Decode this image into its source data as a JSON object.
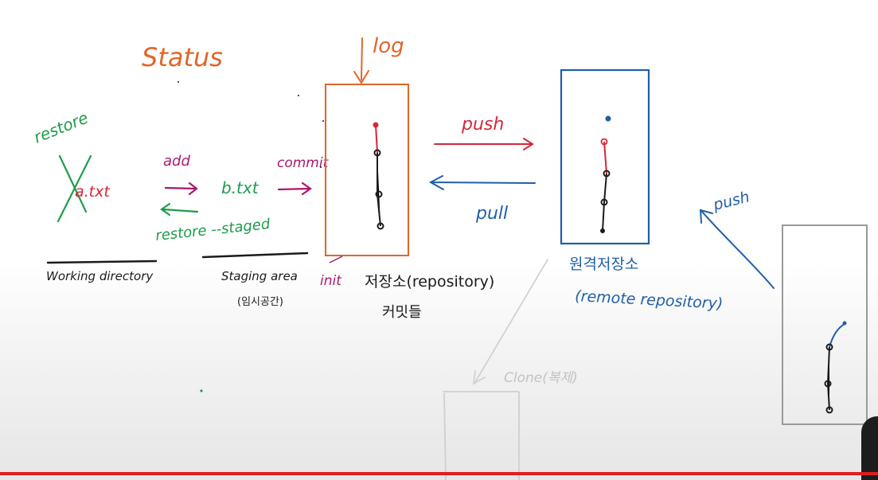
{
  "colors": {
    "orange": "#e0662a",
    "green": "#1f9c4a",
    "magenta": "#a8186e",
    "red": "#d6263a",
    "blue": "#1f5fa8",
    "black": "#1b1b1b",
    "gray": "#c3c3c3",
    "progress": "#e01e1e"
  },
  "labels": {
    "status": "Status",
    "log": "log",
    "restore": "restore",
    "a_txt": "a.txt",
    "add": "add",
    "b_txt": "b.txt",
    "commit": "commit",
    "restore_staged": "restore --staged",
    "working_directory": "Working directory",
    "staging_area": "Staging area",
    "staging_area_kr": "(임시공간)",
    "init": "init",
    "repository": "저장소(repository)",
    "commits_kr": "커밋들",
    "push": "push",
    "pull": "pull",
    "remote_repository_kr": "원격저장소",
    "remote_repository": "(remote repository)",
    "push_right": "push",
    "clone": "Clone(복제)"
  },
  "video": {
    "progress": 1.0
  }
}
